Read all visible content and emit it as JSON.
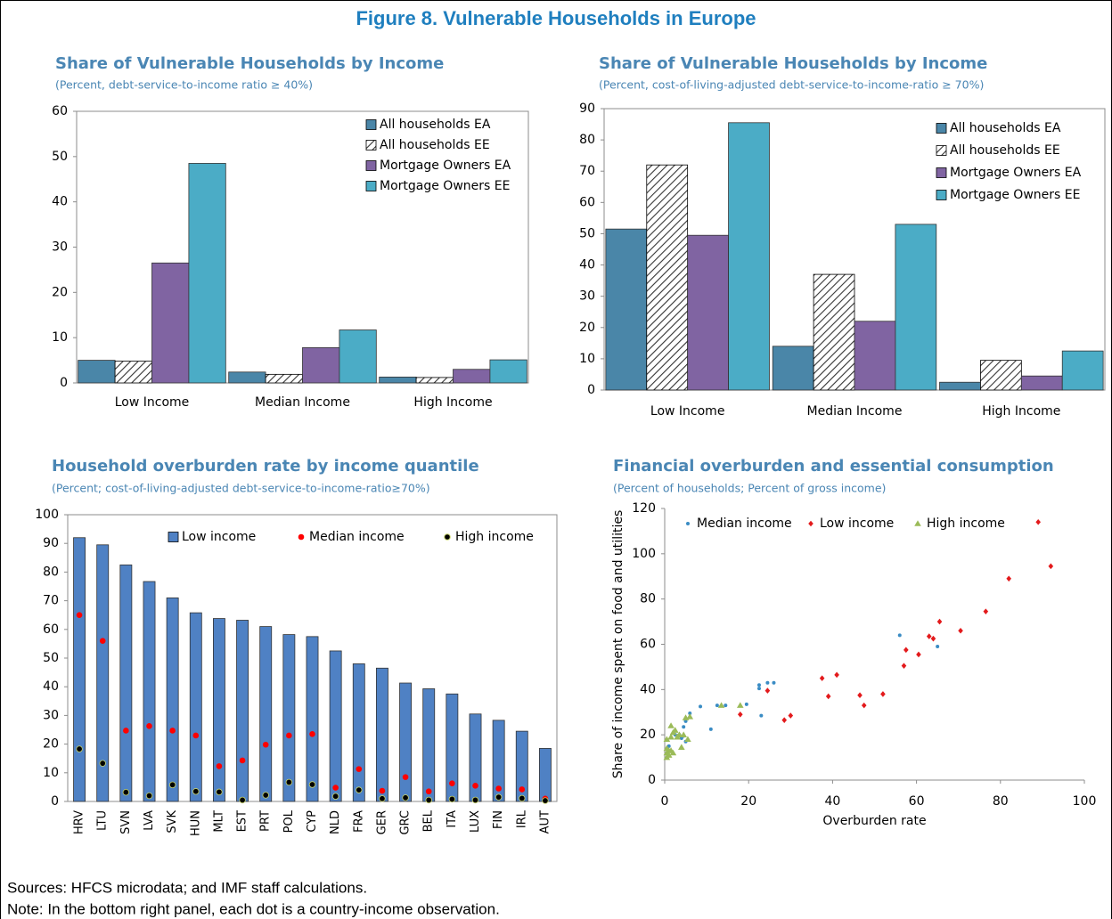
{
  "figure_title": "Figure 8. Vulnerable Households in Europe",
  "sources": "Sources: HFCS microdata; and IMF staff calculations.",
  "note": "Note: In the bottom right panel, each dot is a country-income observation.",
  "chart_data": [
    {
      "type": "bar",
      "title": "Share of Vulnerable Households by Income",
      "subtitle": "(Percent, debt-service-to-income ratio ≥ 40%)",
      "categories": [
        "Low Income",
        "Median Income",
        "High Income"
      ],
      "series": [
        {
          "name": "All households EA",
          "color": "#4a86a8",
          "values": [
            5,
            2.4,
            1.3
          ]
        },
        {
          "name": "All households EE",
          "color": "#ffffff",
          "pattern": "hatch",
          "values": [
            4.8,
            1.9,
            1.2
          ]
        },
        {
          "name": "Mortgage Owners EA",
          "color": "#8064a2",
          "values": [
            26.5,
            7.8,
            3
          ]
        },
        {
          "name": "Mortgage Owners EE",
          "color": "#4bacc6",
          "values": [
            48.5,
            11.7,
            5.1
          ]
        }
      ],
      "ylim": [
        0,
        60
      ],
      "yticks": [
        0,
        10,
        20,
        30,
        40,
        50,
        60
      ],
      "legend": "upper right"
    },
    {
      "type": "bar",
      "title": "Share of Vulnerable Households by Income",
      "subtitle": "(Percent, cost-of-living-adjusted debt-service-to-income-ratio ≥ 70%)",
      "categories": [
        "Low Income",
        "Median Income",
        "High Income"
      ],
      "series": [
        {
          "name": "All households EA",
          "color": "#4a86a8",
          "values": [
            51.5,
            14,
            2.5
          ]
        },
        {
          "name": "All households EE",
          "color": "#ffffff",
          "pattern": "hatch",
          "values": [
            72,
            37,
            9.5
          ]
        },
        {
          "name": "Mortgage Owners EA",
          "color": "#8064a2",
          "values": [
            49.5,
            22,
            4.5
          ]
        },
        {
          "name": "Mortgage Owners EE",
          "color": "#4bacc6",
          "values": [
            85.5,
            53,
            12.5
          ]
        }
      ],
      "ylim": [
        0,
        90
      ],
      "yticks": [
        0,
        10,
        20,
        30,
        40,
        50,
        60,
        70,
        80,
        90
      ],
      "legend": "upper right"
    },
    {
      "type": "bar",
      "title": "Household overburden rate by income quantile",
      "subtitle": "(Percent; cost-of-living-adjusted debt-service-to-income-ratio≥70%)",
      "categories": [
        "HRV",
        "LTU",
        "SVN",
        "LVA",
        "SVK",
        "HUN",
        "MLT",
        "EST",
        "PRT",
        "POL",
        "CYP",
        "NLD",
        "FRA",
        "GER",
        "GRC",
        "BEL",
        "ITA",
        "LUX",
        "FIN",
        "IRL",
        "AUT"
      ],
      "series": [
        {
          "name": "Low income",
          "color": "#4f81c4",
          "mark": "bar",
          "values": [
            92,
            89.5,
            82.5,
            76.7,
            71,
            65.8,
            63.8,
            63.2,
            61,
            58.2,
            57.5,
            52.5,
            48,
            46.5,
            41.3,
            39.3,
            37.5,
            30.5,
            28.3,
            24.5,
            18.5
          ]
        },
        {
          "name": "Median income",
          "color": "#ff0000",
          "mark": "dot",
          "values": [
            65,
            56,
            24.7,
            26.3,
            24.7,
            23,
            12.3,
            14.3,
            19.8,
            23,
            23.5,
            4.8,
            11.3,
            3.7,
            8.5,
            3.5,
            6.3,
            5.5,
            4.5,
            4.2,
            1
          ]
        },
        {
          "name": "High income",
          "color": "#000000",
          "mark": "dot",
          "values": [
            18.3,
            13.3,
            3.2,
            2,
            5.8,
            3.5,
            3.3,
            0.5,
            2.2,
            6.7,
            5.9,
            1.8,
            4,
            1,
            1.3,
            0.5,
            0.8,
            0.5,
            1.5,
            1.1,
            0.3
          ]
        }
      ],
      "ylim": [
        0,
        100
      ],
      "yticks": [
        0,
        10,
        20,
        30,
        40,
        50,
        60,
        70,
        80,
        90,
        100
      ],
      "legend": "top"
    },
    {
      "type": "scatter",
      "title": "Financial overburden and essential consumption",
      "subtitle": "(Percent of households; Percent of gross income)",
      "xlabel": "Overburden rate",
      "ylabel": "Share of income spent on food and utilities",
      "series": [
        {
          "name": "Median income",
          "color": "#3a8cc4",
          "marker": "circle",
          "x": [
            56,
            65,
            22.5,
            22.5,
            24.5,
            26,
            23,
            19.5,
            14.5,
            12.5,
            11,
            8.5,
            6,
            5,
            4.5,
            3.5,
            4,
            5,
            2.5,
            1,
            4.5
          ],
          "values": [
            64,
            59,
            42,
            40.5,
            43,
            43,
            28.5,
            33.5,
            33,
            33,
            22.5,
            32.5,
            29.5,
            26,
            23.5,
            20,
            18.5,
            17,
            20,
            15,
            19.5
          ]
        },
        {
          "name": "Low income",
          "color": "#e31a1c",
          "marker": "diamond",
          "x": [
            89,
            92,
            82,
            76.5,
            65.5,
            70.5,
            63,
            64,
            60.5,
            57.5,
            57,
            41,
            37.5,
            39,
            46.5,
            47.5,
            52,
            24.5,
            18,
            30,
            28.5
          ],
          "values": [
            114,
            94.5,
            89,
            74.5,
            70,
            66,
            63.5,
            62.5,
            55.5,
            57.5,
            50.5,
            46.5,
            45,
            37,
            37.5,
            33,
            38,
            39.5,
            29,
            28.5,
            26.5
          ]
        },
        {
          "name": "High income",
          "color": "#9bbb59",
          "marker": "triangle",
          "x": [
            18,
            13.5,
            6,
            5,
            2.5,
            1.5,
            0.5,
            1.5,
            3,
            3.5,
            4,
            5.5,
            0.5,
            1,
            2,
            0.5,
            1,
            4.5,
            2,
            0.5,
            1.5
          ],
          "values": [
            33,
            33,
            28,
            27.5,
            22,
            24,
            18,
            19,
            19,
            20,
            14.5,
            18,
            12,
            11,
            12,
            10,
            13,
            20,
            21,
            14,
            13
          ]
        }
      ],
      "xlim": [
        0,
        100
      ],
      "xticks": [
        0,
        20,
        40,
        60,
        80,
        100
      ],
      "ylim": [
        0,
        120
      ],
      "yticks": [
        0,
        20,
        40,
        60,
        80,
        100,
        120
      ],
      "legend": "top"
    }
  ]
}
